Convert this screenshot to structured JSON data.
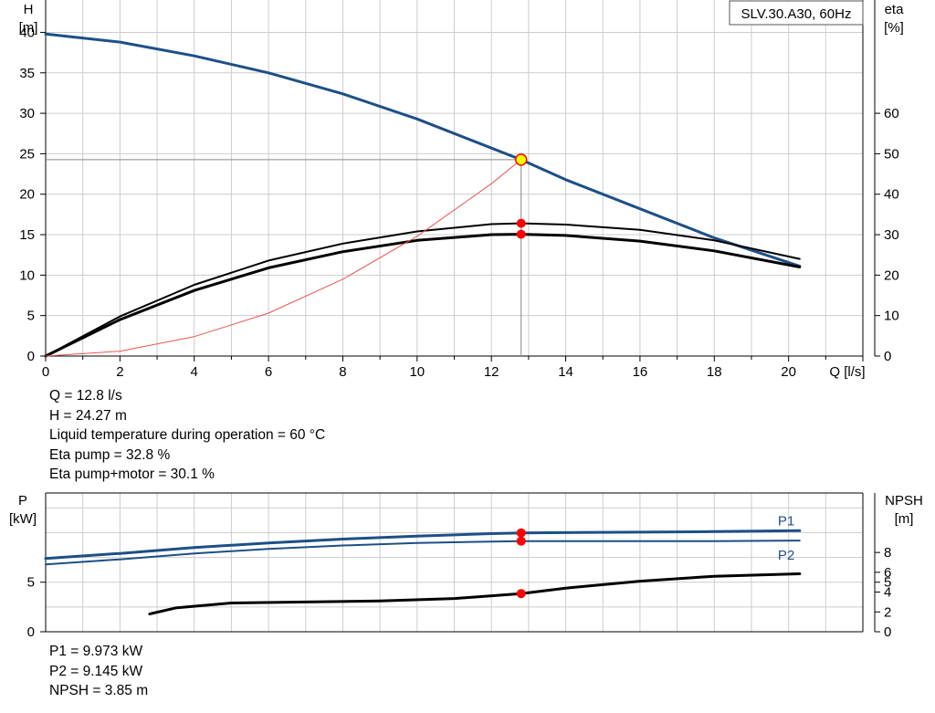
{
  "chart_data": [
    {
      "type": "line",
      "title": "SLV.30.A30, 60Hz",
      "xlabel": "Q [l/s]",
      "ylabel": "H\n[m]",
      "y2label": "eta\n[%]",
      "xlim": [
        0,
        22
      ],
      "ylim": [
        0,
        44
      ],
      "y2lim": [
        0,
        88
      ],
      "xticks": [
        0,
        2,
        4,
        6,
        8,
        10,
        12,
        14,
        16,
        18,
        20
      ],
      "yticks": [
        0,
        5,
        10,
        15,
        20,
        25,
        30,
        35,
        40
      ],
      "y2ticks": [
        0,
        10,
        20,
        30,
        40,
        50,
        60
      ],
      "grid": true,
      "series": [
        {
          "key": "head",
          "axis": "left",
          "color": "#1d4f87",
          "x": [
            0,
            2,
            4,
            6,
            8,
            10,
            12,
            12.8,
            14,
            16,
            18,
            20.3
          ],
          "y": [
            39.8,
            38.8,
            37.1,
            35.0,
            32.4,
            29.3,
            25.7,
            24.27,
            21.8,
            18.2,
            14.6,
            11.1
          ]
        },
        {
          "key": "eta_pump",
          "axis": "right",
          "color": "#000000",
          "x": [
            0,
            2,
            4,
            6,
            8,
            10,
            12,
            12.8,
            14,
            16,
            18,
            20.3
          ],
          "y": [
            0,
            9.8,
            17.6,
            23.6,
            27.8,
            30.8,
            32.6,
            32.8,
            32.5,
            31.2,
            28.6,
            24.0
          ]
        },
        {
          "key": "eta_pump_motor",
          "axis": "right",
          "color": "#000000",
          "x": [
            0,
            2,
            4,
            6,
            8,
            10,
            12,
            12.8,
            14,
            16,
            18,
            20.3
          ],
          "y": [
            0,
            9.0,
            16.2,
            21.8,
            25.8,
            28.6,
            30.0,
            30.1,
            29.8,
            28.4,
            26.0,
            22.0
          ]
        },
        {
          "key": "system_curve",
          "axis": "left",
          "color": "#e8554e",
          "x": [
            0,
            2,
            4,
            6,
            8,
            10,
            12,
            12.8
          ],
          "y": [
            0,
            0.6,
            2.4,
            5.3,
            9.5,
            14.8,
            21.3,
            24.27
          ]
        }
      ],
      "duty_point": {
        "x": 12.8,
        "y": 24.27
      },
      "markers_right": [
        32.8,
        30.1
      ]
    },
    {
      "type": "line",
      "xlabel": "",
      "ylabel": "P\n[kW]",
      "y2label": "NPSH\n[m]",
      "xlim": [
        0,
        22
      ],
      "ylim": [
        0,
        14
      ],
      "y2lim": [
        0,
        14
      ],
      "yticks": [
        0,
        5
      ],
      "y2ticks": [
        0,
        2,
        4,
        5,
        6,
        8
      ],
      "grid": true,
      "series": [
        {
          "key": "p1",
          "name": "P1",
          "axis": "left",
          "color": "#1d4f87",
          "x": [
            0,
            2,
            4,
            6,
            8,
            10,
            12,
            12.8,
            14,
            16,
            18,
            20.3
          ],
          "y": [
            7.4,
            7.9,
            8.5,
            8.95,
            9.35,
            9.65,
            9.9,
            9.973,
            10.0,
            10.05,
            10.1,
            10.2
          ]
        },
        {
          "key": "p2",
          "name": "P2",
          "axis": "left",
          "color": "#1d4f87",
          "x": [
            0,
            2,
            4,
            6,
            8,
            10,
            12,
            12.8,
            14,
            16,
            18,
            20.3
          ],
          "y": [
            6.8,
            7.3,
            7.9,
            8.35,
            8.7,
            8.95,
            9.1,
            9.145,
            9.15,
            9.15,
            9.15,
            9.2
          ]
        },
        {
          "key": "npsh",
          "axis": "right",
          "color": "#000000",
          "x": [
            2.8,
            3.5,
            5,
            7,
            9,
            11,
            12.8,
            14,
            16,
            18,
            20.3
          ],
          "y": [
            1.8,
            2.4,
            2.9,
            3.0,
            3.1,
            3.35,
            3.85,
            4.4,
            5.1,
            5.6,
            5.85
          ]
        }
      ],
      "markers_left": [
        9.973,
        9.145
      ],
      "markers_right": [
        3.85
      ]
    }
  ],
  "operating_info": [
    "Q = 12.8 l/s",
    "H = 24.27 m",
    "Liquid temperature during operation = 60 °C",
    "Eta pump = 32.8 %",
    "Eta pump+motor = 30.1 %"
  ],
  "power_info": [
    "P1 = 9.973 kW",
    "P2 = 9.145 kW",
    "NPSH = 3.85 m"
  ],
  "colors": {
    "curve_blue": "#1d4f87",
    "marker_red": "#ff0000",
    "duty_fill": "#ffff00",
    "grid": "#cccccc"
  }
}
